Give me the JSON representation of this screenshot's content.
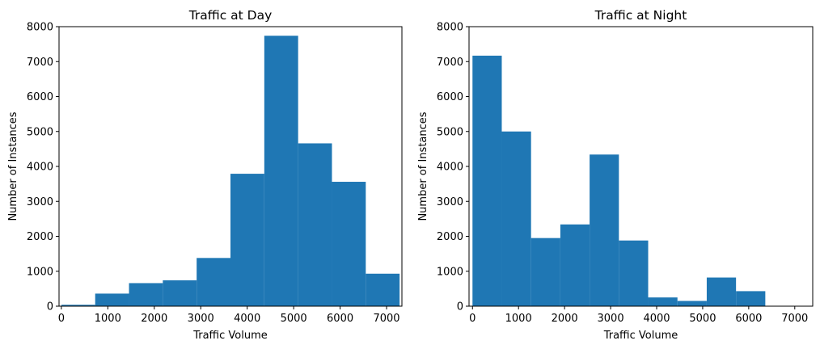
{
  "colors": {
    "bar": "#1f77b4",
    "axes": "#000000",
    "background": "#ffffff"
  },
  "chart_data": [
    {
      "type": "bar",
      "title": "Traffic at Day",
      "xlabel": "Traffic Volume",
      "ylabel": "Number of Instances",
      "xlim": [
        -50,
        7330
      ],
      "ylim": [
        0,
        8000
      ],
      "xticks": [
        0,
        1000,
        2000,
        3000,
        4000,
        5000,
        6000,
        7000
      ],
      "yticks": [
        0,
        1000,
        2000,
        3000,
        4000,
        5000,
        6000,
        7000,
        8000
      ],
      "bin_edges": [
        0,
        728,
        1456,
        2184,
        2912,
        3640,
        4368,
        5096,
        5824,
        6552,
        7280
      ],
      "values": [
        40,
        360,
        660,
        740,
        1380,
        3790,
        7740,
        4660,
        3560,
        930
      ],
      "grid": false
    },
    {
      "type": "bar",
      "title": "Traffic at Night",
      "xlabel": "Traffic Volume",
      "ylabel": "Number of Instances",
      "xlim": [
        -75,
        7390
      ],
      "ylim": [
        0,
        8000
      ],
      "xticks": [
        0,
        1000,
        2000,
        3000,
        4000,
        5000,
        6000,
        7000
      ],
      "yticks": [
        0,
        1000,
        2000,
        3000,
        4000,
        5000,
        6000,
        7000,
        8000
      ],
      "bin_edges": [
        0,
        636,
        1272,
        1908,
        2544,
        3180,
        3816,
        4452,
        5088,
        5724,
        6360
      ],
      "values": [
        7170,
        5000,
        1950,
        2340,
        4340,
        1880,
        250,
        150,
        820,
        430
      ],
      "grid": false
    }
  ]
}
